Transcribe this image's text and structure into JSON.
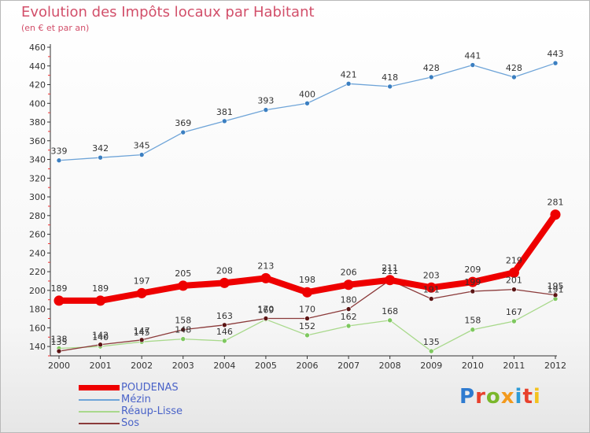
{
  "header": {
    "title": "Evolution des Impôts locaux par Habitant",
    "subtitle": "(en € et par an)"
  },
  "logo": {
    "text": "Proxiti",
    "letter_colors": [
      "#2e7bd0",
      "#e8412d",
      "#7ab72b",
      "#f39a1e",
      "#2e9bd6",
      "#e8412d",
      "#f3c21e"
    ]
  },
  "chart_data": {
    "type": "line",
    "title": "Evolution des Impôts locaux par Habitant",
    "subtitle": "(en € et par an)",
    "x": [
      2000,
      2001,
      2002,
      2003,
      2004,
      2005,
      2006,
      2007,
      2008,
      2009,
      2010,
      2011,
      2012
    ],
    "xlabels": [
      "2000",
      "2001",
      "2002",
      "2003",
      "2004",
      "2005",
      "2006",
      "2007",
      "2008",
      "2009",
      "2010",
      "2011",
      "2012"
    ],
    "ylim": [
      130,
      460
    ],
    "yticks": [
      140,
      160,
      180,
      200,
      220,
      240,
      260,
      280,
      300,
      320,
      340,
      360,
      380,
      400,
      420,
      440,
      460
    ],
    "grid": false,
    "legend_placement": "bottom-left",
    "series": [
      {
        "name": "POUDENAS",
        "color": "#ee0000",
        "emphasis": true,
        "values": [
          189,
          189,
          197,
          205,
          208,
          213,
          198,
          206,
          211,
          203,
          209,
          219,
          281
        ],
        "labels": [
          "189",
          "189",
          "197",
          "205",
          "208",
          "213",
          "198",
          "206",
          "211",
          "203",
          "209",
          "219",
          "281"
        ]
      },
      {
        "name": "Mézin",
        "color": "#6ea4d8",
        "marker": "#3b7fc1",
        "values": [
          339,
          342,
          345,
          369,
          381,
          393,
          400,
          421,
          418,
          428,
          441,
          428,
          443
        ],
        "labels": [
          "339",
          "342",
          "345",
          "369",
          "381",
          "393",
          "400",
          "421",
          "418",
          "428",
          "441",
          "428",
          "443"
        ]
      },
      {
        "name": "Réaup-Lisse",
        "color": "#a9d98c",
        "marker": "#7ec85f",
        "values": [
          138,
          140,
          145,
          148,
          146,
          169,
          152,
          162,
          168,
          135,
          158,
          167,
          191
        ],
        "labels": [
          "138",
          "140",
          "145",
          "148",
          "146",
          "169",
          "152",
          "162",
          "168",
          "135",
          "158",
          "167",
          "191"
        ]
      },
      {
        "name": "Sos",
        "color": "#8b3a3a",
        "marker": "#5c1414",
        "values": [
          135,
          142,
          147,
          158,
          163,
          170,
          170,
          180,
          211,
          191,
          199,
          201,
          195
        ],
        "labels": [
          "135",
          "142",
          "147",
          "158",
          "163",
          "170",
          "170",
          "180",
          "211",
          "191",
          "199",
          "201",
          "195"
        ]
      }
    ]
  }
}
